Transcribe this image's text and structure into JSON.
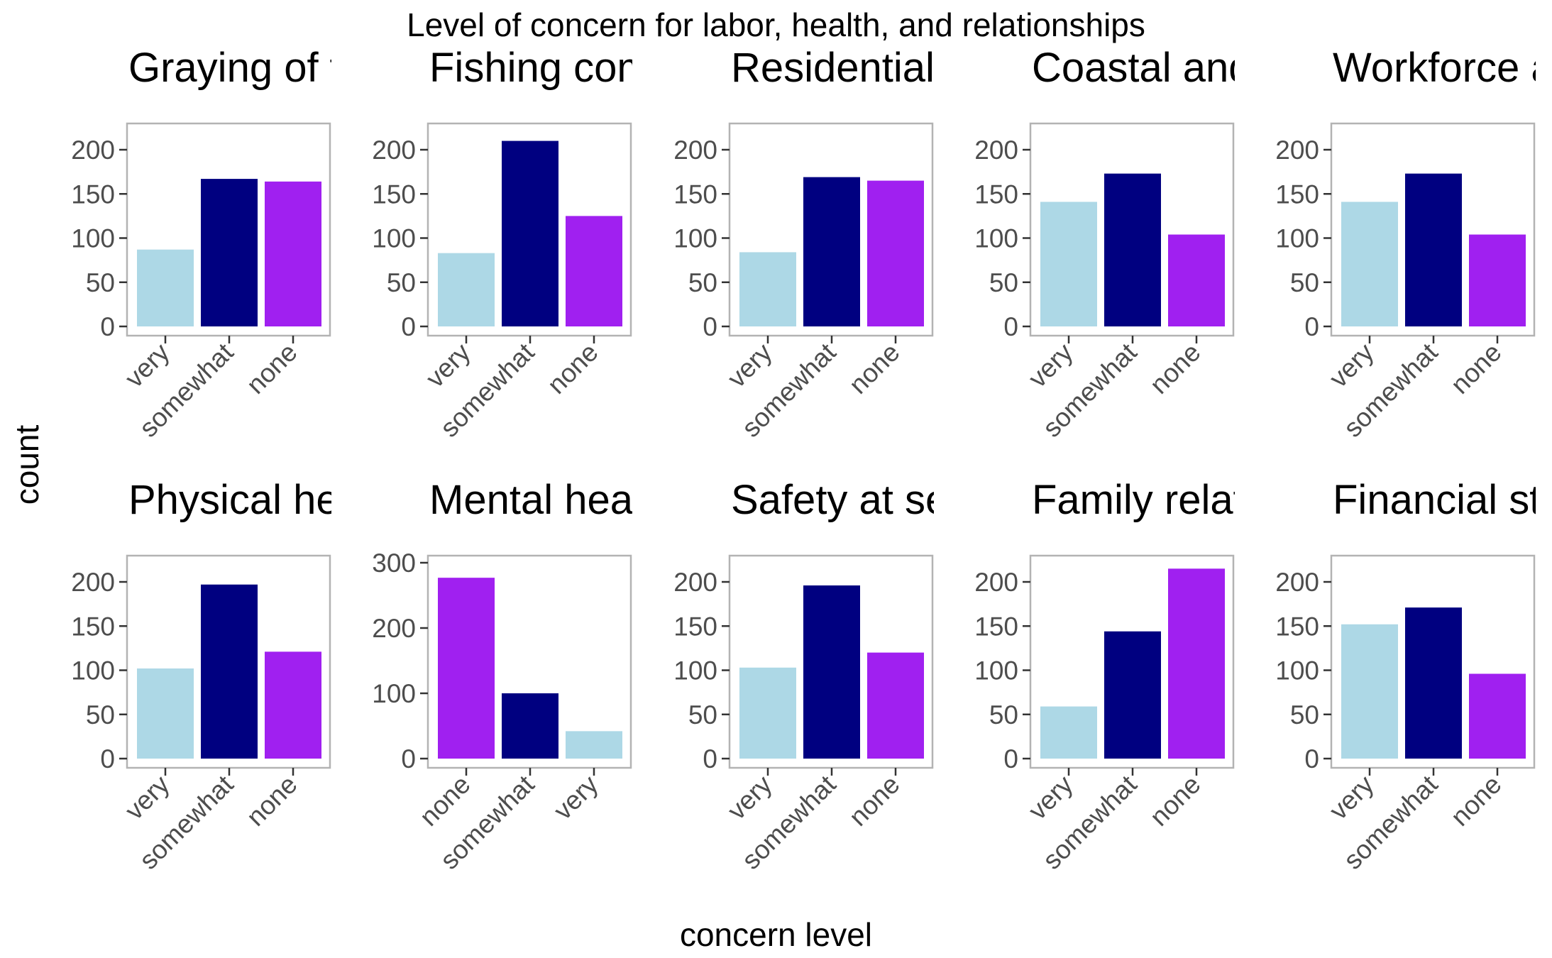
{
  "figure": {
    "title": "Level of concern for labor, health, and relationships",
    "xlabel": "concern level",
    "ylabel": "count"
  },
  "colors": {
    "very": "#ADD8E6",
    "somewhat": "#000080",
    "none": "#A020F0"
  },
  "chart_data": [
    {
      "type": "bar",
      "title": "Graying of t",
      "categories": [
        "very",
        "somewhat",
        "none"
      ],
      "values": [
        87,
        167,
        164
      ],
      "ylim": [
        0,
        230
      ],
      "yticks": [
        0,
        50,
        100,
        150,
        200
      ]
    },
    {
      "type": "bar",
      "title": "Fishing com",
      "categories": [
        "very",
        "somewhat",
        "none"
      ],
      "values": [
        83,
        210,
        125
      ],
      "ylim": [
        0,
        230
      ],
      "yticks": [
        0,
        50,
        100,
        150,
        200
      ]
    },
    {
      "type": "bar",
      "title": "Residential",
      "categories": [
        "very",
        "somewhat",
        "none"
      ],
      "values": [
        84,
        169,
        165
      ],
      "ylim": [
        0,
        230
      ],
      "yticks": [
        0,
        50,
        100,
        150,
        200
      ]
    },
    {
      "type": "bar",
      "title": "Coastal and",
      "categories": [
        "very",
        "somewhat",
        "none"
      ],
      "values": [
        141,
        173,
        104
      ],
      "ylim": [
        0,
        230
      ],
      "yticks": [
        0,
        50,
        100,
        150,
        200
      ]
    },
    {
      "type": "bar",
      "title": "Workforce a",
      "categories": [
        "very",
        "somewhat",
        "none"
      ],
      "values": [
        141,
        173,
        104
      ],
      "ylim": [
        0,
        230
      ],
      "yticks": [
        0,
        50,
        100,
        150,
        200
      ]
    },
    {
      "type": "bar",
      "title": "Physical hea",
      "categories": [
        "very",
        "somewhat",
        "none"
      ],
      "values": [
        102,
        197,
        121
      ],
      "ylim": [
        0,
        230
      ],
      "yticks": [
        0,
        50,
        100,
        150,
        200
      ]
    },
    {
      "type": "bar",
      "title": "Mental healt",
      "categories": [
        "none",
        "somewhat",
        "very"
      ],
      "values": [
        277,
        100,
        42
      ],
      "ylim": [
        0,
        305
      ],
      "yticks": [
        0,
        100,
        200,
        300
      ]
    },
    {
      "type": "bar",
      "title": "Safety at se",
      "categories": [
        "very",
        "somewhat",
        "none"
      ],
      "values": [
        103,
        196,
        120
      ],
      "ylim": [
        0,
        230
      ],
      "yticks": [
        0,
        50,
        100,
        150,
        200
      ]
    },
    {
      "type": "bar",
      "title": "Family relat",
      "categories": [
        "very",
        "somewhat",
        "none"
      ],
      "values": [
        59,
        144,
        215
      ],
      "ylim": [
        0,
        230
      ],
      "yticks": [
        0,
        50,
        100,
        150,
        200
      ]
    },
    {
      "type": "bar",
      "title": "Financial str",
      "categories": [
        "very",
        "somewhat",
        "none"
      ],
      "values": [
        152,
        171,
        96
      ],
      "ylim": [
        0,
        230
      ],
      "yticks": [
        0,
        50,
        100,
        150,
        200
      ]
    }
  ]
}
